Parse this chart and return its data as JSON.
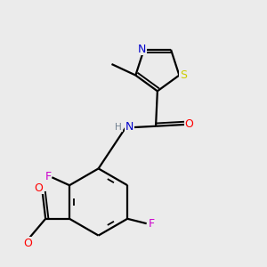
{
  "background_color": "#ebebeb",
  "bond_color": "#000000",
  "atom_colors": {
    "N": "#0000cc",
    "S": "#cccc00",
    "O": "#ff0000",
    "F": "#cc00cc",
    "H": "#708090"
  },
  "bond_lw": 1.6,
  "inner_lw": 1.3,
  "font_size": 9,
  "small_font": 7.5
}
